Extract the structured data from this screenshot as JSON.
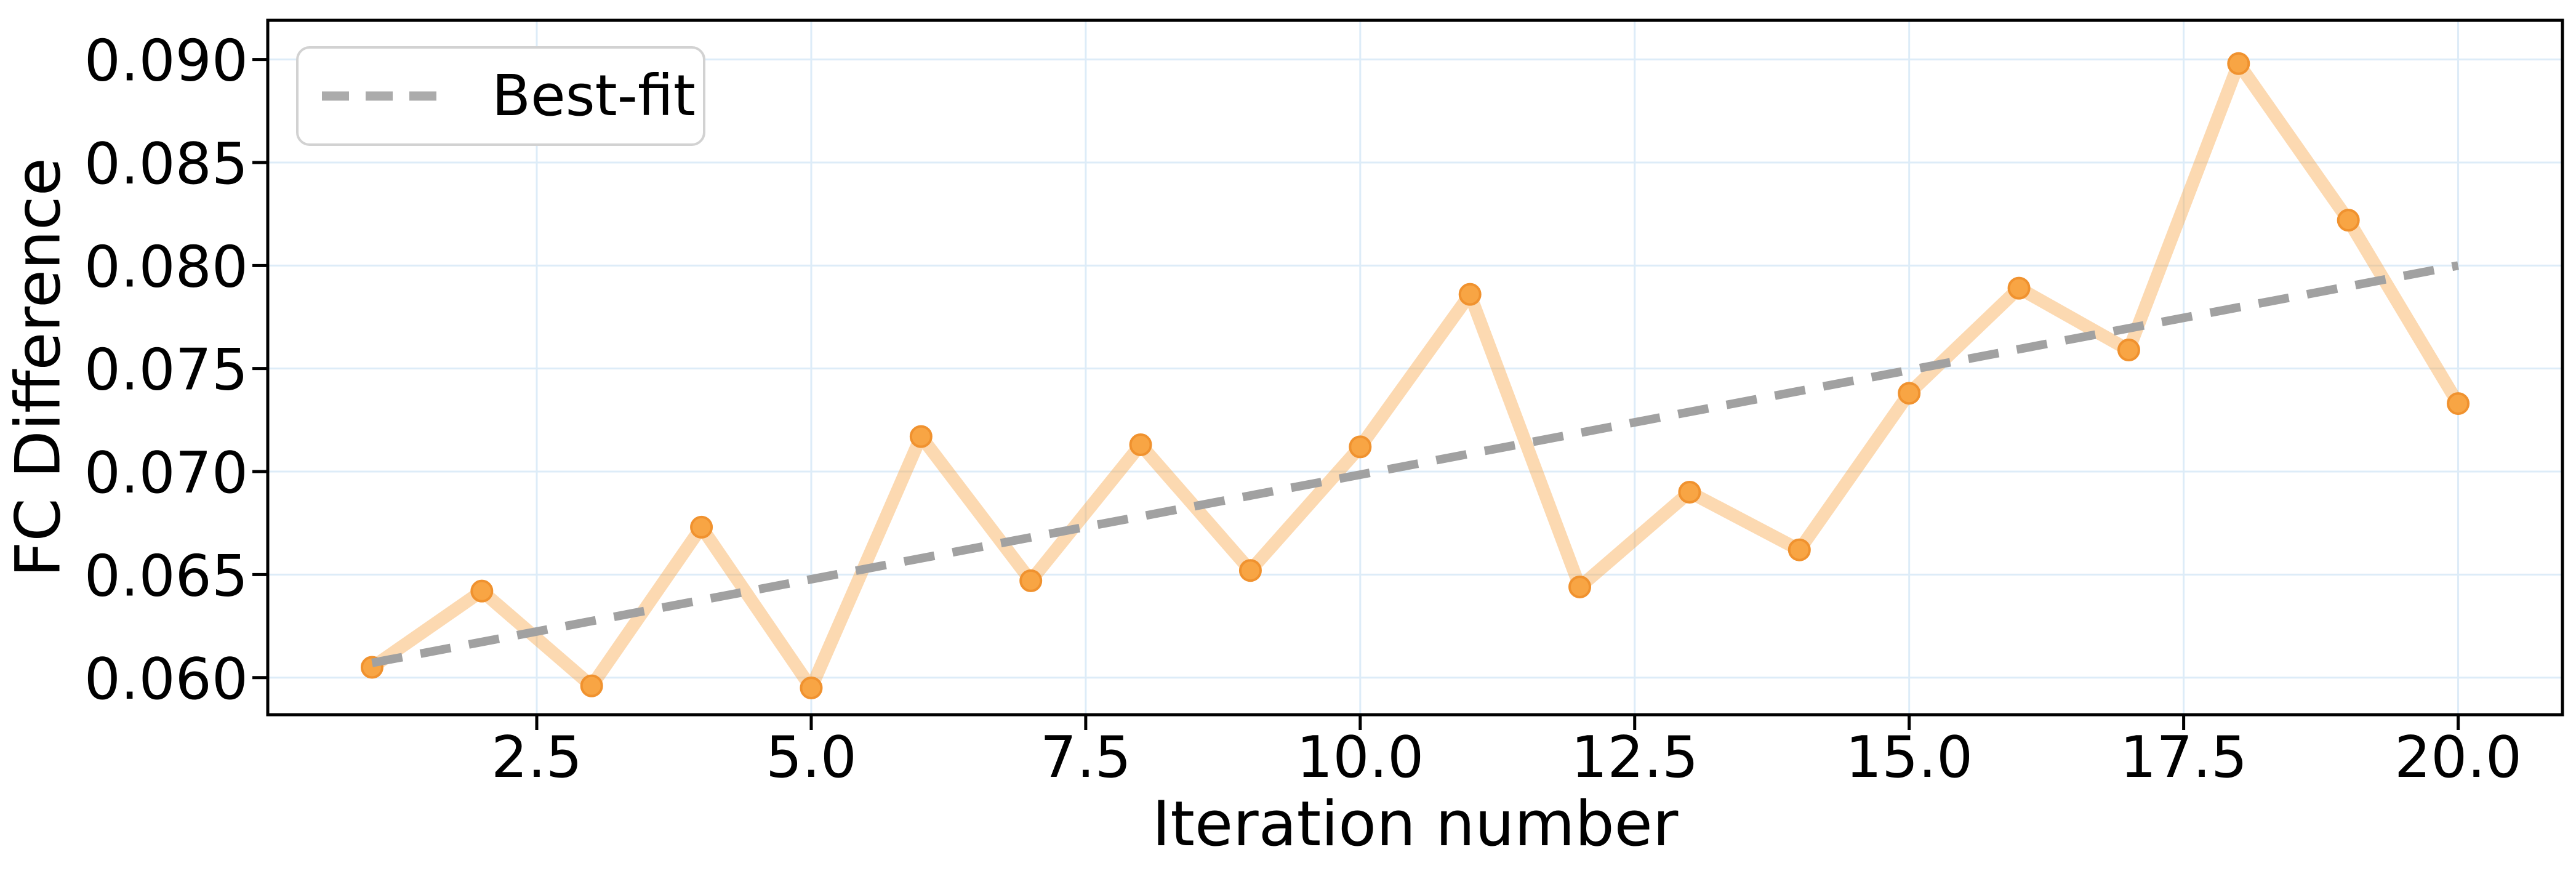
{
  "chart_data": {
    "type": "line",
    "title": "",
    "xlabel": "Iteration number",
    "ylabel": "FC Difference",
    "grid": true,
    "legend_position": "upper left",
    "legend": [
      {
        "label": "Best-fit",
        "style": "dashed",
        "color": "#ababab"
      }
    ],
    "x": [
      1,
      2,
      3,
      4,
      5,
      6,
      7,
      8,
      9,
      10,
      11,
      12,
      13,
      14,
      15,
      16,
      17,
      18,
      19,
      20
    ],
    "series": [
      {
        "name": "FC Difference",
        "values": [
          0.0605,
          0.0642,
          0.0596,
          0.0673,
          0.0595,
          0.0717,
          0.0647,
          0.0713,
          0.0652,
          0.0712,
          0.0786,
          0.0644,
          0.069,
          0.0662,
          0.0738,
          0.0789,
          0.0759,
          0.0898,
          0.0822,
          0.0733
        ]
      }
    ],
    "best_fit": {
      "label": "Best-fit",
      "slope": 0.001015,
      "intercept": 0.0597,
      "x_start": 1,
      "x_end": 20
    },
    "xlim": [
      0.05,
      20.95
    ],
    "ylim": [
      0.0582,
      0.0919
    ],
    "xticks": {
      "values": [
        2.5,
        5.0,
        7.5,
        10.0,
        12.5,
        15.0,
        17.5,
        20.0
      ],
      "labels": [
        "2.5",
        "5.0",
        "7.5",
        "10.0",
        "12.5",
        "15.0",
        "17.5",
        "20.0"
      ]
    },
    "yticks": {
      "values": [
        0.06,
        0.065,
        0.07,
        0.075,
        0.08,
        0.085,
        0.09
      ],
      "labels": [
        "0.060",
        "0.065",
        "0.070",
        "0.075",
        "0.080",
        "0.085",
        "0.090"
      ]
    },
    "colors": {
      "data_line": "rgba(248,164,69,0.42)",
      "marker_fill": "#f8a544",
      "marker_edge": "#f0922f",
      "best_fit_line": "#a1a1a1",
      "grid_line": "#ddecf8",
      "spine": "#000000",
      "legend_border": "#d2d2d2"
    }
  }
}
